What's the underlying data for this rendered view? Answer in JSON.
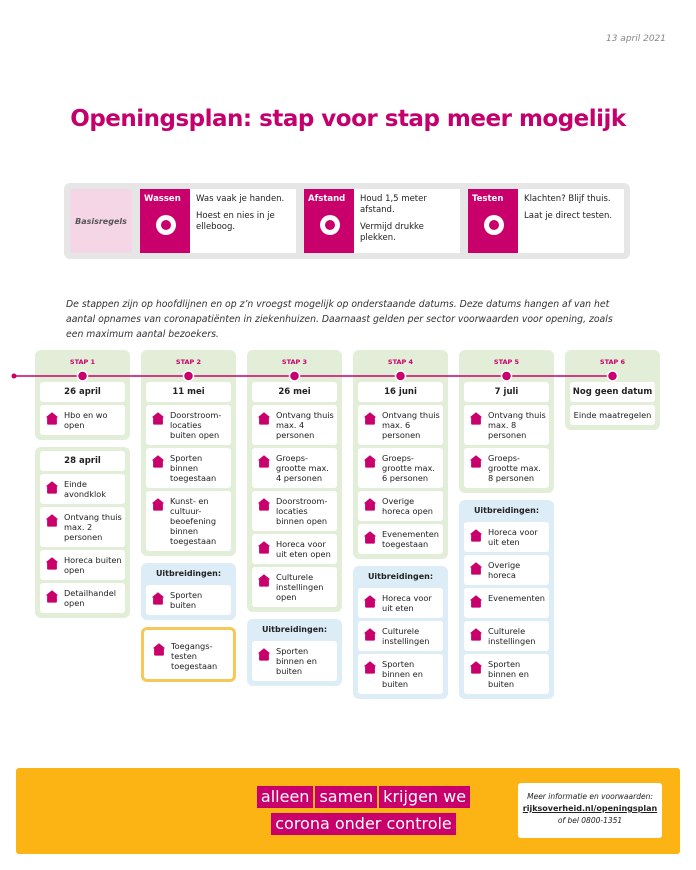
{
  "date": "13 april 2021",
  "title": "Openingsplan: stap voor stap meer mogelijk",
  "basic_rules": {
    "label": "Basisregels",
    "rules": [
      {
        "name": "Wassen",
        "text": [
          "Was vaak je handen.",
          "Hoest en nies in je elleboog."
        ]
      },
      {
        "name": "Afstand",
        "text": [
          "Houd 1,5 meter afstand.",
          "Vermijd drukke plekken."
        ]
      },
      {
        "name": "Testen",
        "text": [
          "Klachten? Blijf thuis.",
          "Laat je direct testen."
        ]
      }
    ]
  },
  "intro": "De stappen zijn op hoofdlijnen en op z’n vroegst mogelijk op onderstaande datums. Deze datums hangen af van het aantal opnames van coronapatiënten in ziekenhuizen. Daarnaast gelden per sector voorwaarden voor opening, zoals een maximum aantal bezoekers.",
  "timeline": {
    "steps": [
      {
        "label": "STAP 1",
        "groups": [
          {
            "date": "26 april",
            "items": [
              "Hbo en wo open"
            ]
          },
          {
            "date": "28 april",
            "items": [
              "Einde avondklok",
              "Ontvang thuis max. 2 personen",
              "Horeca buiten open",
              "Detailhandel open"
            ]
          }
        ]
      },
      {
        "label": "STAP 2",
        "groups": [
          {
            "date": "11 mei",
            "items": [
              "Doorstroom-locaties buiten open",
              "Sporten binnen toegestaan",
              "Kunst- en cultuur-beoefening binnen toegestaan"
            ]
          }
        ],
        "extensions": {
          "title": "Uitbreidingen:",
          "items": [
            "Sporten buiten"
          ]
        },
        "conditions": [
          "Toegangs-testen toegestaan"
        ]
      },
      {
        "label": "STAP 3",
        "groups": [
          {
            "date": "26 mei",
            "items": [
              "Ontvang thuis max. 4 personen",
              "Groeps-grootte max. 4 personen",
              "Doorstroom-locaties binnen open",
              "Horeca voor uit eten open",
              "Culturele instellingen open"
            ]
          }
        ],
        "extensions": {
          "title": "Uitbreidingen:",
          "items": [
            "Sporten binnen en buiten"
          ]
        }
      },
      {
        "label": "STAP 4",
        "groups": [
          {
            "date": "16 juni",
            "items": [
              "Ontvang thuis max. 6 personen",
              "Groeps-grootte max. 6 personen",
              "Overige horeca open",
              "Evenementen toegestaan"
            ]
          }
        ],
        "extensions": {
          "title": "Uitbreidingen:",
          "items": [
            "Horeca voor uit eten",
            "Culturele instellingen",
            "Sporten binnen en buiten"
          ]
        }
      },
      {
        "label": "STAP 5",
        "groups": [
          {
            "date": "7 juli",
            "items": [
              "Ontvang thuis max. 8 personen",
              "Groeps-grootte max. 8 personen"
            ]
          }
        ],
        "extensions": {
          "title": "Uitbreidingen:",
          "items": [
            "Horeca voor uit eten",
            "Overige horeca",
            "Evenementen",
            "Culturele instellingen",
            "Sporten binnen en buiten"
          ]
        }
      },
      {
        "label": "STAP 6",
        "groups": [
          {
            "date": "Nog geen datum",
            "items": [
              "Einde maatregelen"
            ]
          }
        ]
      }
    ]
  },
  "footer": {
    "slogan": [
      "alleen",
      "samen",
      "krijgen we",
      "corona onder controle"
    ],
    "info": [
      "Meer informatie en voorwaarden:",
      "rijksoverheid.nl/openingsplan",
      "of bel 0800-1351"
    ]
  }
}
